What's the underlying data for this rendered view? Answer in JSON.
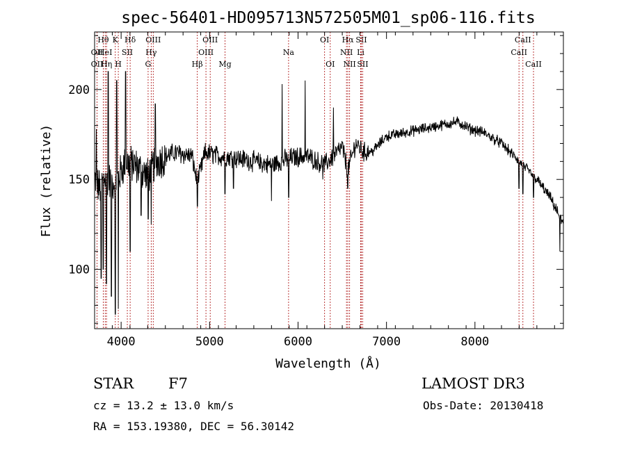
{
  "chart_data": {
    "type": "line",
    "title": "spec-56401-HD095713N572505M01_sp06-116.fits",
    "xlabel": "Wavelength (Å)",
    "ylabel": "Flux (relative)",
    "xlim": [
      3700,
      9000
    ],
    "ylim": [
      67,
      232
    ],
    "x_ticks": [
      4000,
      5000,
      6000,
      7000,
      8000
    ],
    "x_minor_step": 200,
    "y_ticks": [
      100,
      150,
      200
    ],
    "y_minor_step": 10,
    "grid": false,
    "series": [
      {
        "name": "spectrum",
        "color": "#000000",
        "anchors": [
          {
            "x": 3700,
            "y": 150
          },
          {
            "x": 3760,
            "y": 145
          },
          {
            "x": 3820,
            "y": 152
          },
          {
            "x": 3900,
            "y": 148
          },
          {
            "x": 3960,
            "y": 150
          },
          {
            "x": 4050,
            "y": 160
          },
          {
            "x": 4150,
            "y": 158
          },
          {
            "x": 4300,
            "y": 152
          },
          {
            "x": 4400,
            "y": 160
          },
          {
            "x": 4600,
            "y": 165
          },
          {
            "x": 4800,
            "y": 163
          },
          {
            "x": 4861,
            "y": 148
          },
          {
            "x": 4950,
            "y": 165
          },
          {
            "x": 5100,
            "y": 163
          },
          {
            "x": 5300,
            "y": 162
          },
          {
            "x": 5500,
            "y": 160
          },
          {
            "x": 5700,
            "y": 158
          },
          {
            "x": 5900,
            "y": 162
          },
          {
            "x": 6100,
            "y": 163
          },
          {
            "x": 6300,
            "y": 158
          },
          {
            "x": 6500,
            "y": 168
          },
          {
            "x": 6563,
            "y": 155
          },
          {
            "x": 6650,
            "y": 170
          },
          {
            "x": 6750,
            "y": 165
          },
          {
            "x": 6850,
            "y": 166
          },
          {
            "x": 7000,
            "y": 174
          },
          {
            "x": 7200,
            "y": 176
          },
          {
            "x": 7400,
            "y": 178
          },
          {
            "x": 7600,
            "y": 180
          },
          {
            "x": 7800,
            "y": 182
          },
          {
            "x": 7950,
            "y": 178
          },
          {
            "x": 8100,
            "y": 176
          },
          {
            "x": 8300,
            "y": 170
          },
          {
            "x": 8500,
            "y": 160
          },
          {
            "x": 8700,
            "y": 150
          },
          {
            "x": 8850,
            "y": 140
          },
          {
            "x": 9000,
            "y": 125
          }
        ],
        "noise_amplitude": 9,
        "dips": [
          {
            "x": 3775,
            "y": 95
          },
          {
            "x": 3798,
            "y": 100
          },
          {
            "x": 3835,
            "y": 92
          },
          {
            "x": 3889,
            "y": 85
          },
          {
            "x": 3934,
            "y": 75
          },
          {
            "x": 3968,
            "y": 78
          },
          {
            "x": 4102,
            "y": 110
          },
          {
            "x": 4227,
            "y": 130
          },
          {
            "x": 4305,
            "y": 128
          },
          {
            "x": 4340,
            "y": 125
          },
          {
            "x": 4861,
            "y": 135
          },
          {
            "x": 5175,
            "y": 142
          },
          {
            "x": 5270,
            "y": 145
          },
          {
            "x": 5700,
            "y": 138
          },
          {
            "x": 5895,
            "y": 140
          },
          {
            "x": 6280,
            "y": 150
          },
          {
            "x": 6563,
            "y": 145
          },
          {
            "x": 8498,
            "y": 145
          },
          {
            "x": 8542,
            "y": 142
          },
          {
            "x": 8662,
            "y": 140
          },
          {
            "x": 8960,
            "y": 110
          }
        ],
        "spikes": [
          {
            "x": 3720,
            "y": 178
          },
          {
            "x": 3855,
            "y": 210
          },
          {
            "x": 3950,
            "y": 205
          },
          {
            "x": 4050,
            "y": 210
          },
          {
            "x": 4385,
            "y": 192
          },
          {
            "x": 5820,
            "y": 203
          },
          {
            "x": 6080,
            "y": 205
          },
          {
            "x": 6400,
            "y": 190
          }
        ]
      }
    ],
    "line_markers": [
      {
        "label": "Hθ",
        "x": 3798,
        "row": 0
      },
      {
        "label": "OII",
        "x": 3727,
        "row": 1
      },
      {
        "label": "OII",
        "x": 3727,
        "row": 2
      },
      {
        "label": "HeI",
        "x": 3820,
        "row": 1
      },
      {
        "label": "Hη",
        "x": 3835,
        "row": 2
      },
      {
        "label": "K",
        "x": 3934,
        "row": 0
      },
      {
        "label": "SII",
        "x": 4070,
        "row": 1
      },
      {
        "label": "H",
        "x": 3968,
        "row": 2
      },
      {
        "label": "Hδ",
        "x": 4102,
        "row": 0
      },
      {
        "label": "OIII",
        "x": 4363,
        "row": 0
      },
      {
        "label": "Hγ",
        "x": 4340,
        "row": 1
      },
      {
        "label": "G",
        "x": 4305,
        "row": 2
      },
      {
        "label": "OIII",
        "x": 5007,
        "row": 0
      },
      {
        "label": "OIII",
        "x": 4959,
        "row": 1
      },
      {
        "label": "Hβ",
        "x": 4861,
        "row": 2
      },
      {
        "label": "Mg",
        "x": 5175,
        "row": 2
      },
      {
        "label": "Na",
        "x": 5893,
        "row": 1
      },
      {
        "label": "OI",
        "x": 6300,
        "row": 0
      },
      {
        "label": "OI",
        "x": 6364,
        "row": 2
      },
      {
        "label": "Hα",
        "x": 6563,
        "row": 0
      },
      {
        "label": "SII",
        "x": 6716,
        "row": 0
      },
      {
        "label": "NII",
        "x": 6548,
        "row": 1
      },
      {
        "label": "Li",
        "x": 6708,
        "row": 1
      },
      {
        "label": "NII",
        "x": 6583,
        "row": 2
      },
      {
        "label": "SII",
        "x": 6731,
        "row": 2
      },
      {
        "label": "CaII",
        "x": 8542,
        "row": 0
      },
      {
        "label": "CaII",
        "x": 8498,
        "row": 1
      },
      {
        "label": "CaII",
        "x": 8662,
        "row": 2
      }
    ],
    "marker_line_color": "#b22222"
  },
  "info": {
    "object_type": "STAR",
    "subclass": "F7",
    "survey": "LAMOST DR3",
    "cz": "cz = 13.2 ± 13.0 km/s",
    "obs_date": "Obs-Date: 20130418",
    "coords": "RA = 153.19380, DEC =  56.30142"
  }
}
